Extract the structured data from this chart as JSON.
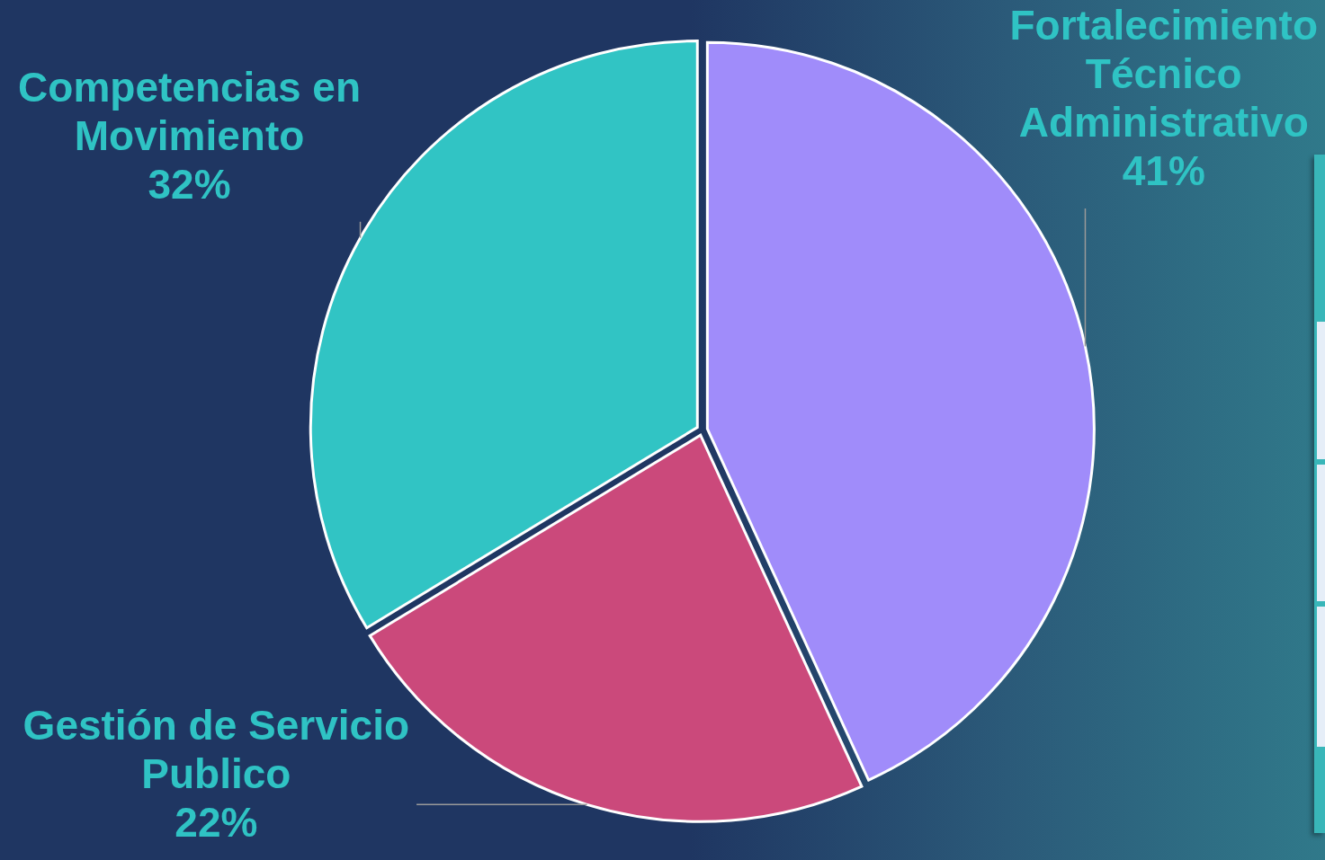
{
  "chart_data": {
    "type": "pie",
    "categories": [
      "Fortalecimiento Técnico Administrativo",
      "Gestión de Servicio Publico",
      "Competencias en Movimiento"
    ],
    "values": [
      41,
      22,
      32
    ],
    "colors": [
      "#a08cfa",
      "#cb497b",
      "#31c4c4"
    ],
    "value_labels": [
      "41%",
      "22%",
      "32%"
    ]
  }
}
